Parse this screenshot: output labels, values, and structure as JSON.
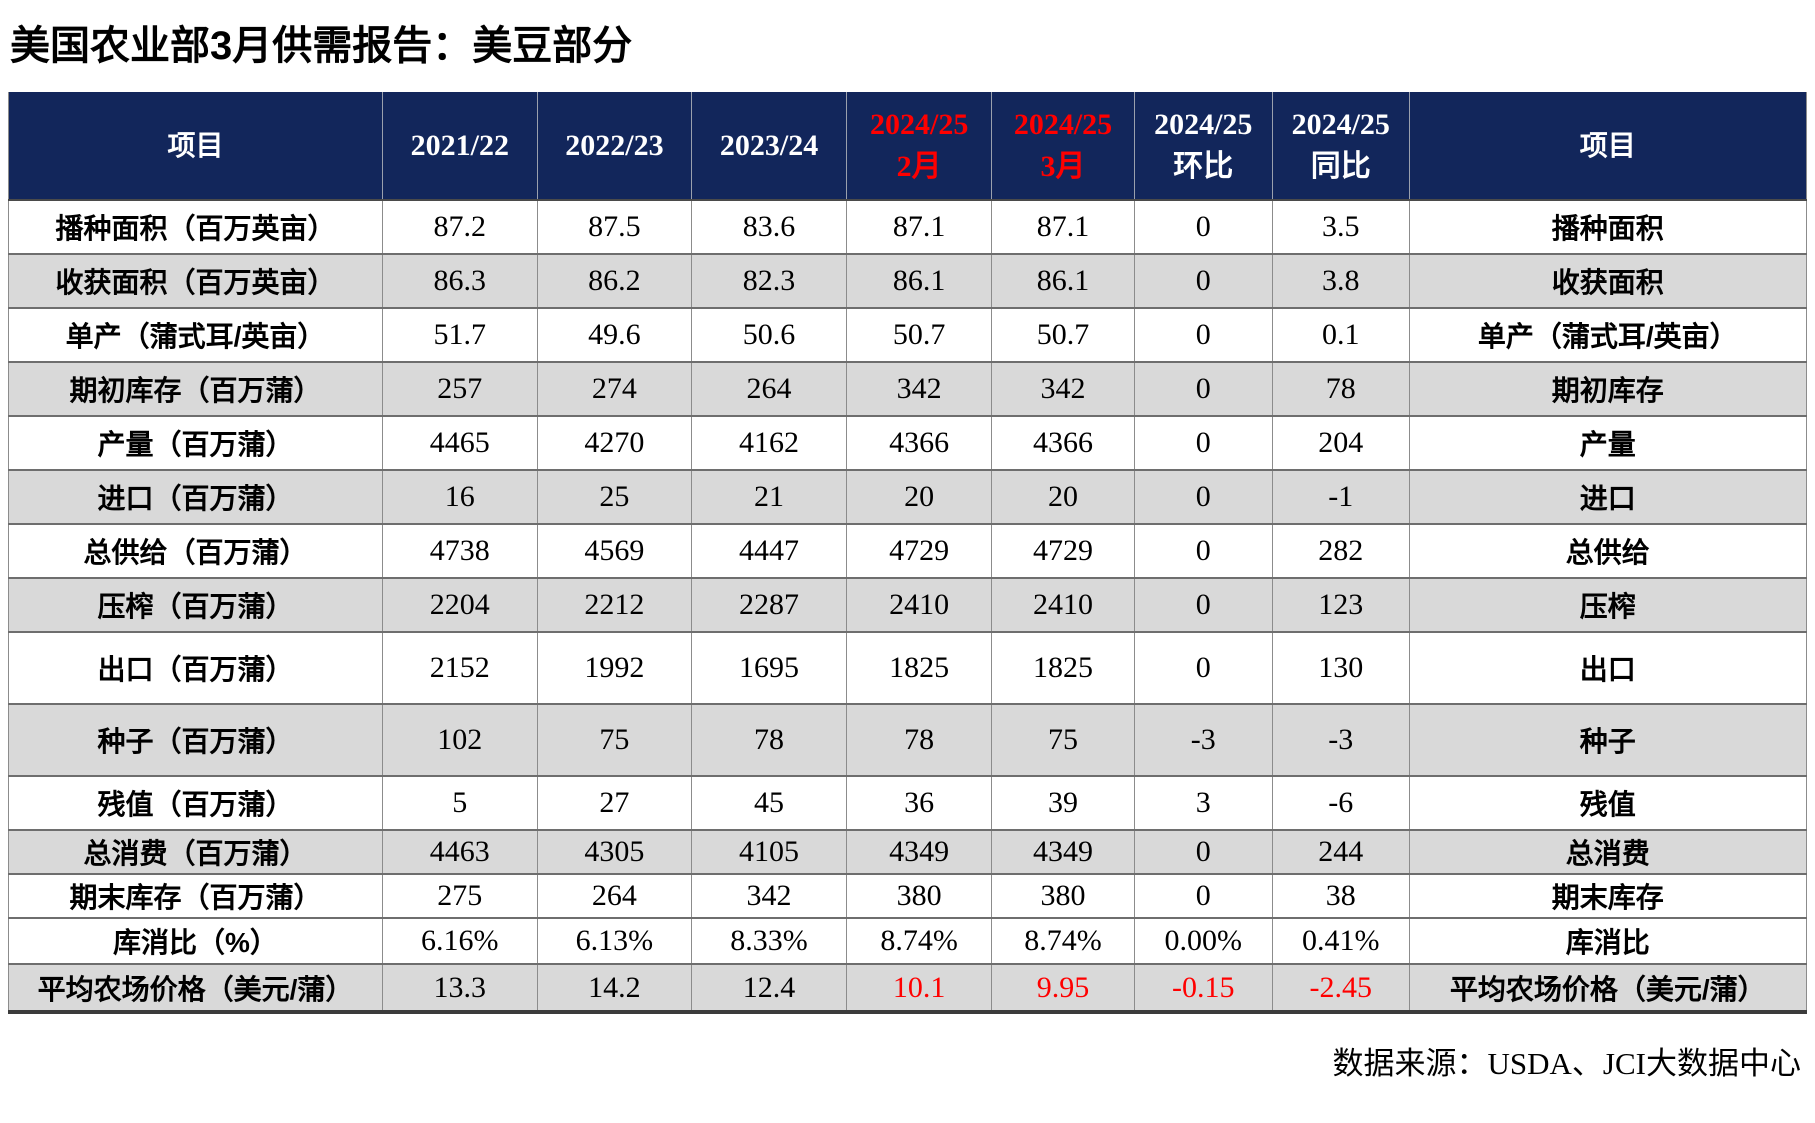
{
  "title": "美国农业部3月供需报告：美豆部分",
  "source_note": "数据来源：USDA、JCI大数据中心",
  "colors": {
    "header_bg": "#12265B",
    "header_text": "#FFFFFF",
    "highlight_red": "#FF0000",
    "row_shade": "#D9D9D9",
    "grid_line": "#8C8C8C",
    "row_line": "#6E6E6E",
    "heavy_line": "#3B3B3B",
    "text": "#000000"
  },
  "chart_data": {
    "type": "table",
    "title": "美国农业部3月供需报告：美豆部分",
    "source": "数据来源：USDA、JCI大数据中心",
    "columns": [
      {
        "key": "item_left",
        "line1": "项目",
        "line2": "",
        "red": false
      },
      {
        "key": "y2021_22",
        "line1": "2021/22",
        "line2": "",
        "red": false
      },
      {
        "key": "y2022_23",
        "line1": "2022/23",
        "line2": "",
        "red": false
      },
      {
        "key": "y2023_24",
        "line1": "2023/24",
        "line2": "",
        "red": false
      },
      {
        "key": "y2024_25_feb",
        "line1": "2024/25",
        "line2": "2月",
        "red": true
      },
      {
        "key": "y2024_25_mar",
        "line1": "2024/25",
        "line2": "3月",
        "red": true
      },
      {
        "key": "y2024_25_mom",
        "line1": "2024/25",
        "line2": "环比",
        "red": false
      },
      {
        "key": "y2024_25_yoy",
        "line1": "2024/25",
        "line2": "同比",
        "red": false
      },
      {
        "key": "item_right",
        "line1": "项目",
        "line2": "",
        "red": false
      }
    ],
    "rows": [
      {
        "label": "播种面积（百万英亩）",
        "values": [
          "87.2",
          "87.5",
          "83.6",
          "87.1",
          "87.1",
          "0",
          "3.5"
        ],
        "label_right": "播种面积",
        "shade": false,
        "red_from": null
      },
      {
        "label": "收获面积（百万英亩）",
        "values": [
          "86.3",
          "86.2",
          "82.3",
          "86.1",
          "86.1",
          "0",
          "3.8"
        ],
        "label_right": "收获面积",
        "shade": true,
        "red_from": null
      },
      {
        "label": "单产（蒲式耳/英亩）",
        "values": [
          "51.7",
          "49.6",
          "50.6",
          "50.7",
          "50.7",
          "0",
          "0.1"
        ],
        "label_right": "单产（蒲式耳/英亩）",
        "shade": false,
        "red_from": null
      },
      {
        "label": "期初库存（百万蒲）",
        "values": [
          "257",
          "274",
          "264",
          "342",
          "342",
          "0",
          "78"
        ],
        "label_right": "期初库存",
        "shade": true,
        "red_from": null
      },
      {
        "label": "产量（百万蒲）",
        "values": [
          "4465",
          "4270",
          "4162",
          "4366",
          "4366",
          "0",
          "204"
        ],
        "label_right": "产量",
        "shade": false,
        "red_from": null
      },
      {
        "label": "进口（百万蒲）",
        "values": [
          "16",
          "25",
          "21",
          "20",
          "20",
          "0",
          "-1"
        ],
        "label_right": "进口",
        "shade": true,
        "red_from": null
      },
      {
        "label": "总供给（百万蒲）",
        "values": [
          "4738",
          "4569",
          "4447",
          "4729",
          "4729",
          "0",
          "282"
        ],
        "label_right": "总供给",
        "shade": false,
        "red_from": null
      },
      {
        "label": "压榨（百万蒲）",
        "values": [
          "2204",
          "2212",
          "2287",
          "2410",
          "2410",
          "0",
          "123"
        ],
        "label_right": "压榨",
        "shade": true,
        "red_from": null
      },
      {
        "label": "出口（百万蒲）",
        "values": [
          "2152",
          "1992",
          "1695",
          "1825",
          "1825",
          "0",
          "130"
        ],
        "label_right": "出口",
        "shade": false,
        "red_from": null
      },
      {
        "label": "种子（百万蒲）",
        "values": [
          "102",
          "75",
          "78",
          "78",
          "75",
          "-3",
          "-3"
        ],
        "label_right": "种子",
        "shade": true,
        "red_from": null
      },
      {
        "label": "残值（百万蒲）",
        "values": [
          "5",
          "27",
          "45",
          "36",
          "39",
          "3",
          "-6"
        ],
        "label_right": "残值",
        "shade": false,
        "red_from": null
      },
      {
        "label": "总消费（百万蒲）",
        "values": [
          "4463",
          "4305",
          "4105",
          "4349",
          "4349",
          "0",
          "244"
        ],
        "label_right": "总消费",
        "shade": true,
        "red_from": null
      },
      {
        "label": "期末库存（百万蒲）",
        "values": [
          "275",
          "264",
          "342",
          "380",
          "380",
          "0",
          "38"
        ],
        "label_right": "期末库存",
        "shade": false,
        "red_from": null
      },
      {
        "label": "库消比（%）",
        "values": [
          "6.16%",
          "6.13%",
          "8.33%",
          "8.74%",
          "8.74%",
          "0.00%",
          "0.41%"
        ],
        "label_right": "库消比",
        "shade": false,
        "red_from": null
      },
      {
        "label": "平均农场价格（美元/蒲）",
        "values": [
          "13.3",
          "14.2",
          "12.4",
          "10.1",
          "9.95",
          "-0.15",
          "-2.45"
        ],
        "label_right": "平均农场价格（美元/蒲）",
        "shade": true,
        "red_from": 3
      }
    ]
  }
}
